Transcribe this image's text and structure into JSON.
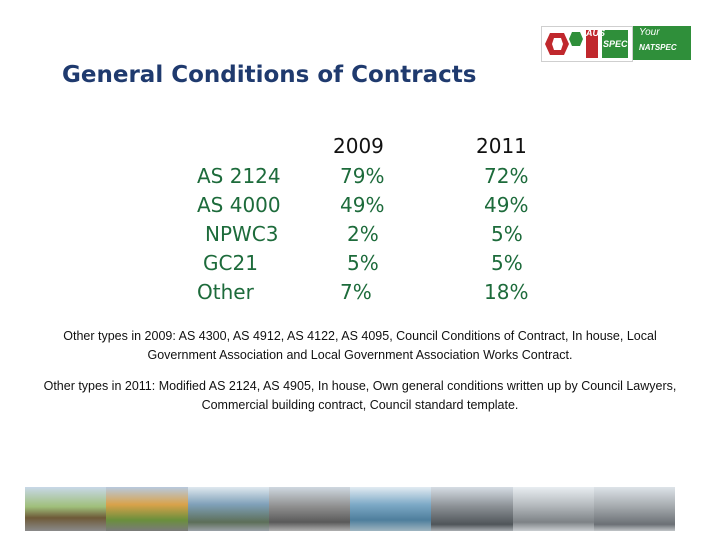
{
  "slide": {
    "title": "General Conditions of Contracts",
    "logos": {
      "left_text": "AUS",
      "left_text_2": "SPEC",
      "right_text_1": "Your",
      "right_text_2": "NATSPEC"
    },
    "table": {
      "headers": [
        "2009",
        "2011"
      ],
      "rows": [
        {
          "label": "AS 2124",
          "y2009": "79%",
          "y2011": "72%"
        },
        {
          "label": "AS 4000",
          "y2009": "49%",
          "y2011": "49%"
        },
        {
          "label": "NPWC3",
          "y2009": "2%",
          "y2011": "5%"
        },
        {
          "label": "GC21",
          "y2009": "5%",
          "y2011": "5%"
        },
        {
          "label": "Other",
          "y2009": "7%",
          "y2011": "18%"
        }
      ]
    },
    "notes": {
      "n2009": "Other types in 2009: AS 4300, AS 4912, AS 4122, AS 4095, Council Conditions of Contract, In house, Local Government Association and  Local Government Association Works Contract.",
      "n2011": "Other types in 2011: Modified AS 2124, AS 4905, In house, Own general conditions written up by Council Lawyers, Commercial building contract, Council standard template."
    },
    "colors": {
      "title": "#1f3a6e",
      "text_green": "#1d6b3b",
      "logo_green": "#2f8f3a",
      "logo_red": "#c0282d"
    }
  }
}
